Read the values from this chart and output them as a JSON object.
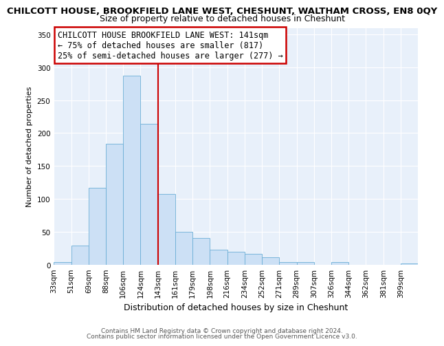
{
  "title": "CHILCOTT HOUSE, BROOKFIELD LANE WEST, CHESHUNT, WALTHAM CROSS, EN8 0QY",
  "subtitle": "Size of property relative to detached houses in Cheshunt",
  "xlabel": "Distribution of detached houses by size in Cheshunt",
  "ylabel": "Number of detached properties",
  "bin_labels": [
    "33sqm",
    "51sqm",
    "69sqm",
    "88sqm",
    "106sqm",
    "124sqm",
    "143sqm",
    "161sqm",
    "179sqm",
    "198sqm",
    "216sqm",
    "234sqm",
    "252sqm",
    "271sqm",
    "289sqm",
    "307sqm",
    "326sqm",
    "344sqm",
    "362sqm",
    "381sqm",
    "399sqm"
  ],
  "bar_heights": [
    4,
    29,
    117,
    184,
    287,
    214,
    107,
    50,
    40,
    23,
    20,
    16,
    11,
    4,
    4,
    0,
    4,
    0,
    0,
    0,
    2
  ],
  "bar_color": "#cce0f5",
  "bar_edge_color": "#6aaed6",
  "vline_x_idx": 6,
  "vline_color": "#cc0000",
  "annotation_title": "CHILCOTT HOUSE BROOKFIELD LANE WEST: 141sqm",
  "annotation_line1": "← 75% of detached houses are smaller (817)",
  "annotation_line2": "25% of semi-detached houses are larger (277) →",
  "annotation_box_color": "#ffffff",
  "annotation_box_edge": "#cc0000",
  "ylim": [
    0,
    360
  ],
  "yticks": [
    0,
    50,
    100,
    150,
    200,
    250,
    300,
    350
  ],
  "footer1": "Contains HM Land Registry data © Crown copyright and database right 2024.",
  "footer2": "Contains public sector information licensed under the Open Government Licence v3.0.",
  "fig_bg_color": "#ffffff",
  "plot_bg_color": "#e8f0fa",
  "grid_color": "#ffffff",
  "title_fontsize": 9.5,
  "subtitle_fontsize": 9.0,
  "ylabel_fontsize": 8.0,
  "xlabel_fontsize": 9.0,
  "annotation_fontsize": 8.5,
  "tick_fontsize": 7.5,
  "footer_fontsize": 6.5
}
